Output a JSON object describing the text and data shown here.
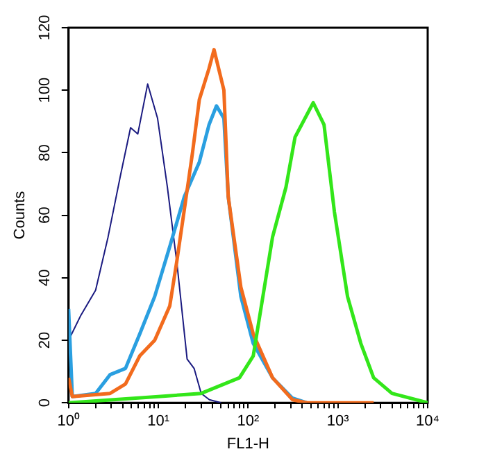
{
  "chart_data": {
    "type": "line",
    "xlabel": "FL1-H",
    "ylabel": "Counts",
    "log": "x",
    "grid": false,
    "legend": false,
    "marker": "none",
    "line_style": "solid",
    "xlim": [
      1,
      10000
    ],
    "ylim": [
      0,
      120
    ],
    "yticks": [
      0,
      20,
      40,
      60,
      80,
      100,
      120
    ],
    "xticks": [
      {
        "value": 1,
        "label": "10⁰"
      },
      {
        "value": 2,
        "label": null
      },
      {
        "value": 3,
        "label": null
      },
      {
        "value": 4,
        "label": null
      },
      {
        "value": 5,
        "label": null
      },
      {
        "value": 6,
        "label": null
      },
      {
        "value": 7,
        "label": null
      },
      {
        "value": 8,
        "label": null
      },
      {
        "value": 9,
        "label": null
      },
      {
        "value": 10,
        "label": "10¹"
      },
      {
        "value": 20,
        "label": null
      },
      {
        "value": 30,
        "label": null
      },
      {
        "value": 40,
        "label": null
      },
      {
        "value": 50,
        "label": null
      },
      {
        "value": 60,
        "label": null
      },
      {
        "value": 70,
        "label": null
      },
      {
        "value": 80,
        "label": null
      },
      {
        "value": 90,
        "label": null
      },
      {
        "value": 100,
        "label": "10²"
      },
      {
        "value": 200,
        "label": null
      },
      {
        "value": 300,
        "label": null
      },
      {
        "value": 400,
        "label": null
      },
      {
        "value": 500,
        "label": null
      },
      {
        "value": 600,
        "label": null
      },
      {
        "value": 700,
        "label": null
      },
      {
        "value": 800,
        "label": null
      },
      {
        "value": 900,
        "label": null
      },
      {
        "value": 1000,
        "label": "10³"
      },
      {
        "value": 2000,
        "label": null
      },
      {
        "value": 3000,
        "label": null
      },
      {
        "value": 4000,
        "label": null
      },
      {
        "value": 5000,
        "label": null
      },
      {
        "value": 6000,
        "label": null
      },
      {
        "value": 7000,
        "label": null
      },
      {
        "value": 8000,
        "label": null
      },
      {
        "value": 9000,
        "label": null
      },
      {
        "value": 10000,
        "label": "10⁴"
      }
    ],
    "series": [
      {
        "color": "#1a1a80",
        "x": [
          1,
          1.37,
          2,
          2.75,
          3.8,
          4.9,
          5.9,
          7.6,
          9.8,
          12.6,
          16.2,
          20.9,
          25,
          30,
          37,
          50
        ],
        "values": [
          20,
          28,
          36,
          53,
          73,
          88,
          86,
          102,
          91,
          69,
          44,
          14,
          11,
          3,
          1,
          0
        ]
      },
      {
        "color": "#2a9fe0",
        "x": [
          1,
          1.1,
          2,
          2.9,
          4.3,
          6.2,
          9.1,
          13.4,
          19.5,
          28.6,
          36.7,
          44.4,
          53.7,
          60,
          83,
          114,
          187,
          311,
          450
        ],
        "values": [
          30,
          2,
          3,
          9,
          11,
          22,
          34,
          50,
          66,
          77,
          89,
          95,
          91,
          66,
          34,
          19,
          8,
          1.5,
          0
        ]
      },
      {
        "color": "#f26b1d",
        "x": [
          1,
          1.1,
          2.9,
          4.3,
          6.2,
          9.1,
          13.4,
          16,
          19.5,
          24,
          28.6,
          36.7,
          41.7,
          53.7,
          60,
          83,
          114,
          187,
          311,
          450,
          2500
        ],
        "values": [
          8,
          2,
          3,
          6,
          15,
          20,
          31,
          45,
          62,
          80,
          97,
          107,
          113,
          100,
          66,
          37,
          22,
          8,
          1,
          0,
          0
        ]
      },
      {
        "color": "#33e61a",
        "x": [
          1,
          10,
          30,
          80,
          114,
          187,
          264,
          333,
          531,
          700,
          915,
          1280,
          1800,
          2500,
          4000,
          10000
        ],
        "values": [
          0,
          2,
          3,
          8,
          15,
          53,
          69,
          85,
          96,
          89,
          61,
          34,
          19,
          8,
          3,
          0
        ]
      }
    ]
  }
}
